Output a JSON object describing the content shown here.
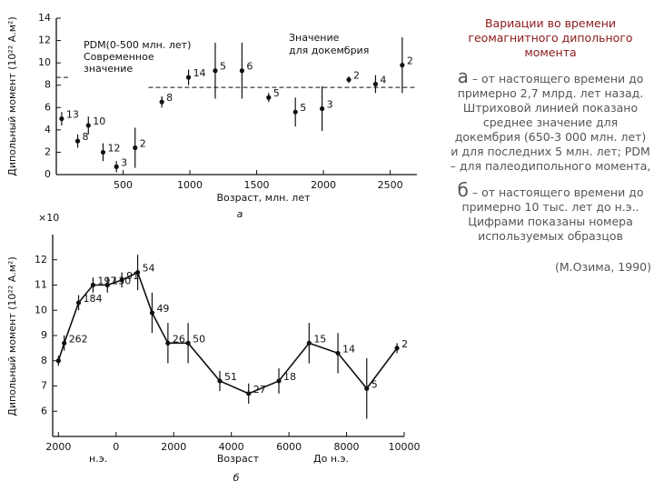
{
  "chart_data": [
    {
      "type": "scatter",
      "y_label": "Дипольный момент (10²² А.м²)",
      "x_label": "Возраст, млн. лет",
      "panel_label": "а",
      "xlim": [
        0,
        2700
      ],
      "ylim": [
        0,
        14
      ],
      "xticks": [
        500,
        1000,
        1500,
        2000,
        2500
      ],
      "yticks": [
        0,
        2,
        4,
        6,
        8,
        10,
        12,
        14
      ],
      "series": [
        {
          "color": "#111",
          "x": [
            40,
            160,
            240,
            350,
            450,
            590,
            790,
            990,
            1190,
            1390,
            1590,
            1790,
            1990,
            2190,
            2390,
            2590
          ],
          "values": [
            5.0,
            3.0,
            4.4,
            2.0,
            0.7,
            2.4,
            6.5,
            8.7,
            9.3,
            9.3,
            6.9,
            5.6,
            5.9,
            8.5,
            8.1,
            9.8
          ],
          "errors": [
            0.6,
            0.6,
            0.8,
            0.8,
            0.5,
            1.8,
            0.5,
            0.7,
            2.5,
            2.5,
            0.4,
            1.3,
            2.0,
            0.3,
            0.8,
            2.5
          ],
          "point_labels": [
            13,
            8,
            10,
            12,
            3,
            2,
            8,
            14,
            5,
            6,
            5,
            5,
            3,
            2,
            4,
            2
          ]
        }
      ],
      "reference_lines": [
        {
          "value": 8.7,
          "x_range": [
            0,
            90
          ]
        },
        {
          "value": 7.8,
          "x_range": [
            690,
            2700
          ]
        }
      ],
      "annotations": [
        "PDM(0-500 млн. лет)",
        "Современное",
        "значение",
        "Значение",
        "для докембрия"
      ]
    },
    {
      "type": "line",
      "y_label": "Дипольный момент (10²² А.м²)",
      "x_label": "Возраст",
      "panel_label": "б",
      "xlim": [
        -200,
        12000
      ],
      "ylim": [
        5,
        13
      ],
      "xticks": [
        {
          "value": 0,
          "label": "2000"
        },
        {
          "value": 2000,
          "label": "0"
        },
        {
          "value": 4000,
          "label": "2000"
        },
        {
          "value": 6000,
          "label": "4000"
        },
        {
          "value": 8000,
          "label": "6000"
        },
        {
          "value": 10000,
          "label": "8000"
        },
        {
          "value": 12000,
          "label": "10000"
        }
      ],
      "yticks": [
        6,
        7,
        8,
        9,
        10,
        11,
        12
      ],
      "series": [
        {
          "color": "#111",
          "x": [
            0,
            200,
            700,
            1200,
            1700,
            2200,
            2750,
            3250,
            3800,
            4500,
            5600,
            6600,
            7650,
            8700,
            9700,
            10700,
            11750
          ],
          "values": [
            8.0,
            8.7,
            10.3,
            11.0,
            11.0,
            11.2,
            11.5,
            9.9,
            8.7,
            8.7,
            7.2,
            6.7,
            7.2,
            8.7,
            8.3,
            6.9,
            8.5
          ],
          "errors": [
            0.2,
            0.3,
            0.3,
            0.3,
            0.3,
            0.3,
            0.7,
            0.8,
            0.8,
            0.8,
            0.4,
            0.4,
            0.5,
            0.8,
            0.8,
            1.2,
            0.2
          ],
          "point_labels": [
            null,
            262,
            184,
            197,
            130,
            91,
            54,
            49,
            26,
            50,
            51,
            27,
            18,
            15,
            14,
            5,
            2
          ]
        }
      ],
      "annotations": [
        "×10",
        "н.э.",
        "До н.э."
      ]
    }
  ],
  "side": {
    "title": "Вариации во времени геомагнитного дипольного момента",
    "items": [
      {
        "letter": "а",
        "text": "– от настоящего времени до примерно 2,7 млрд. лет назад. Штриховой линией показано среднее значение для докембрия (650-3 000 млн. лет) и для последних 5 млн. лет; PDM – для палеодипольного момента,"
      },
      {
        "letter": "б",
        "text": "– от настоящего времени до примерно 10 тыс. лет до н.э.. Цифрами показаны номера используемых образцов"
      }
    ],
    "source": "(М.Озима, 1990)"
  }
}
